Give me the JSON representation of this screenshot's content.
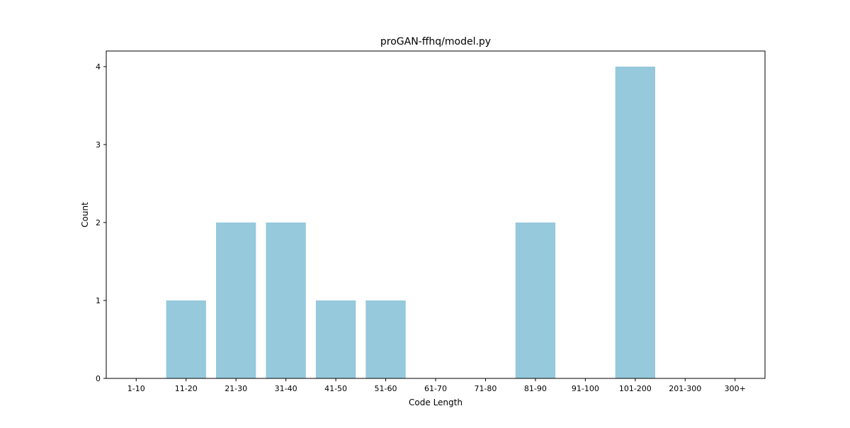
{
  "chart_data": {
    "type": "bar",
    "title": "proGAN-ffhq/model.py",
    "xlabel": "Code Length",
    "ylabel": "Count",
    "categories": [
      "1-10",
      "11-20",
      "21-30",
      "31-40",
      "41-50",
      "51-60",
      "61-70",
      "71-80",
      "81-90",
      "91-100",
      "101-200",
      "201-300",
      "300+"
    ],
    "values": [
      0,
      1,
      2,
      2,
      1,
      1,
      0,
      0,
      2,
      0,
      4,
      0,
      0
    ],
    "ylim": [
      0,
      4.2
    ],
    "yticks": [
      0,
      1,
      2,
      3,
      4
    ],
    "bar_color": "#96c9dc",
    "grid": false,
    "legend": "none"
  }
}
